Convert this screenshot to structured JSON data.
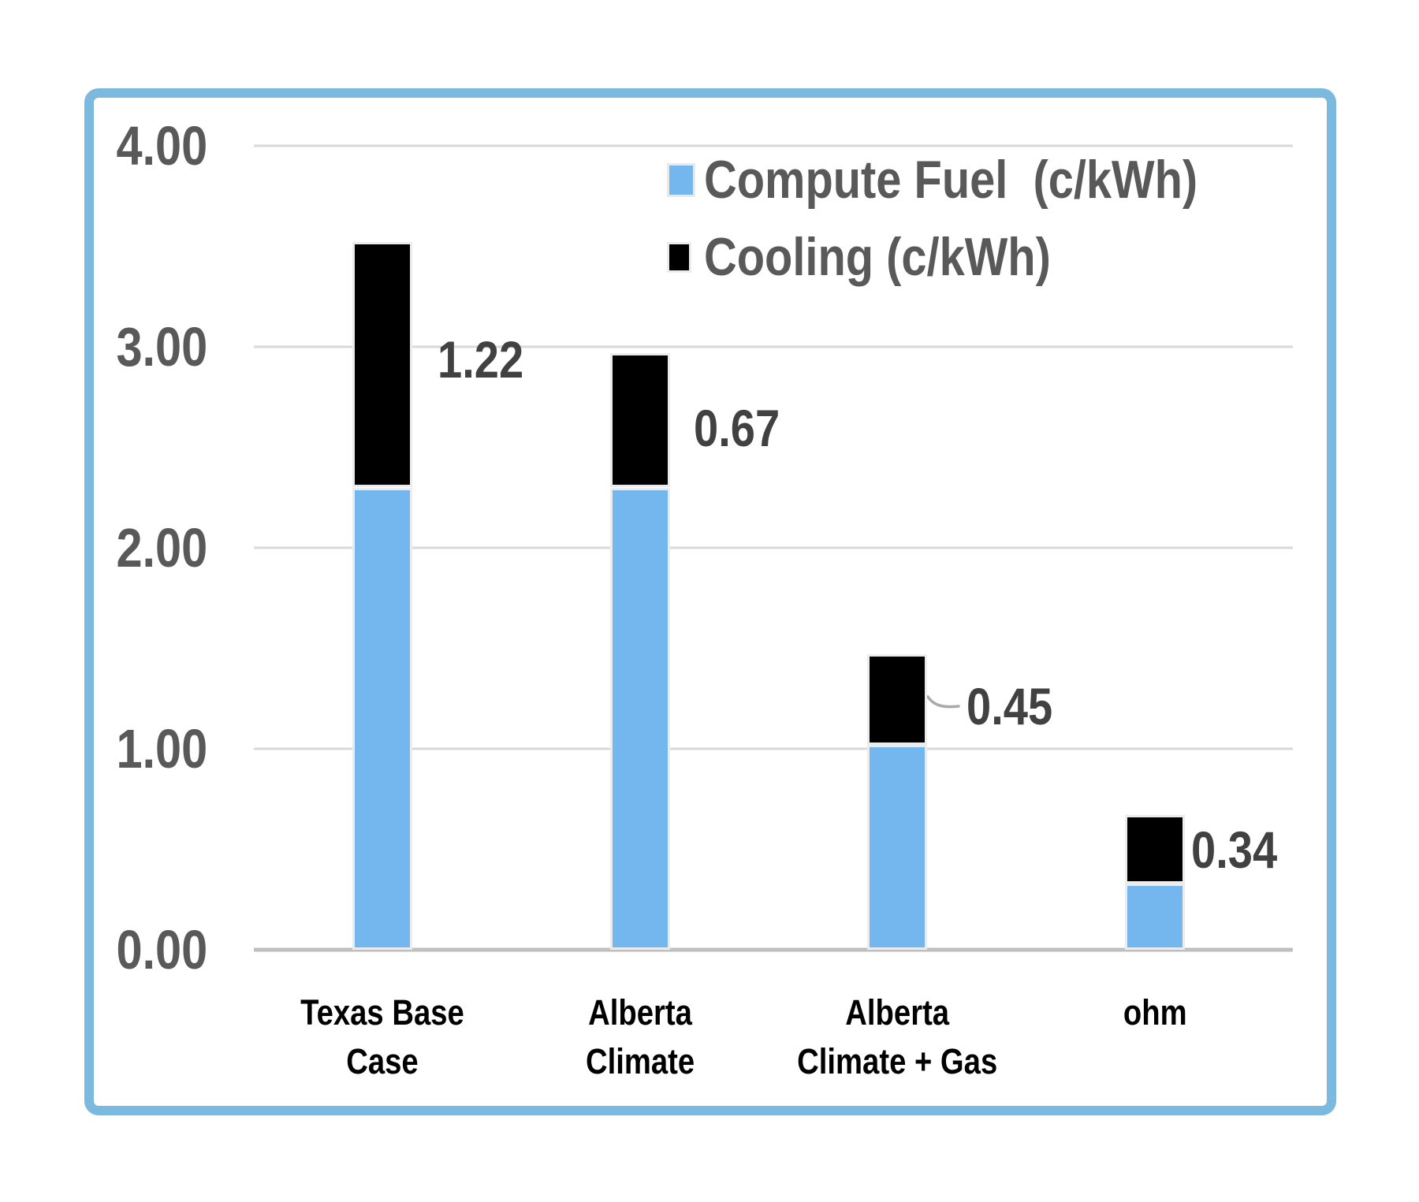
{
  "chart_data": {
    "type": "bar",
    "stacked": true,
    "title": "",
    "xlabel": "",
    "ylabel": "",
    "ylim": [
      0,
      4
    ],
    "yticks": [
      "0.00",
      "1.00",
      "2.00",
      "3.00",
      "4.00"
    ],
    "grid": true,
    "legend_position": "top-right-inside",
    "categories": [
      "Texas Base Case",
      "Alberta Climate",
      "Alberta Climate + Gas",
      "ohm"
    ],
    "category_label_lines": [
      [
        "Texas Base",
        "Case"
      ],
      [
        "Alberta",
        "Climate"
      ],
      [
        "Alberta",
        "Climate + Gas"
      ],
      [
        "ohm"
      ]
    ],
    "series": [
      {
        "name": "Compute Fuel  (c/kWh)",
        "color": "#74B6EE",
        "values": [
          2.3,
          2.3,
          1.02,
          0.33
        ]
      },
      {
        "name": "Cooling (c/kWh)",
        "color": "#000000",
        "values": [
          1.22,
          0.67,
          0.45,
          0.34
        ]
      }
    ],
    "data_labels": {
      "labeled_series": "Cooling (c/kWh)",
      "values": [
        "1.22",
        "0.67",
        "0.45",
        "0.34"
      ],
      "leader_line_on": "Alberta Climate + Gas"
    }
  },
  "legend": {
    "items": [
      {
        "label": "Compute Fuel  (c/kWh)",
        "color": "#74B6EE"
      },
      {
        "label": "Cooling (c/kWh)",
        "color": "#000000"
      }
    ]
  },
  "colors": {
    "frame_border": "#7CB9DF",
    "gridline": "#D9D9D9",
    "x_axis_line": "#BFBFBF",
    "bar_outline": "#ECECEC",
    "axis_text": "#595959",
    "data_label_text": "#414141",
    "category_text": "#000000",
    "leader_line": "#A9A9A9",
    "background": "#FFFFFF"
  }
}
